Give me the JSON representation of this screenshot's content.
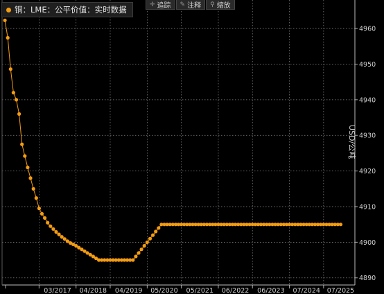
{
  "legend": {
    "label": "铜：LME：公平价值：实时数据",
    "color": "#f39c12"
  },
  "toolbar": [
    {
      "icon": "crosshair-icon",
      "glyph": "✛",
      "label": "追踪"
    },
    {
      "icon": "pencil-icon",
      "glyph": "✎",
      "label": "注释"
    },
    {
      "icon": "zoom-icon",
      "glyph": "⚲",
      "label": "缩放"
    }
  ],
  "chart_data": {
    "type": "line",
    "title": "",
    "xlabel": "",
    "ylabel": "USD/公吨",
    "ylim": [
      4888,
      4968
    ],
    "yticks": [
      4890,
      4900,
      4910,
      4920,
      4930,
      4940,
      4950,
      4960
    ],
    "xlim": [
      "2016-02",
      "2026-06"
    ],
    "xticks": [
      "03/2017",
      "04/2018",
      "04/2019",
      "05/2020",
      "05/2021",
      "06/2022",
      "06/2023",
      "07/2024",
      "07/2025"
    ],
    "grid": true,
    "legend_position": "top-left",
    "series": [
      {
        "name": "铜：LME：公平价值：实时数据",
        "color": "#f39c12",
        "marker": "circle",
        "points": [
          [
            "2016-03",
            4962.3
          ],
          [
            "2016-04",
            4957.4
          ],
          [
            "2016-05",
            4948.6
          ],
          [
            "2016-06",
            4942.0
          ],
          [
            "2016-07",
            4940.0
          ],
          [
            "2016-08",
            4936.0
          ],
          [
            "2016-09",
            4927.5
          ],
          [
            "2016-10",
            4924.2
          ],
          [
            "2016-11",
            4921.0
          ],
          [
            "2016-12",
            4918.0
          ],
          [
            "2017-01",
            4915.0
          ],
          [
            "2017-02",
            4912.4
          ],
          [
            "2017-03",
            4909.5
          ],
          [
            "2017-04",
            4908.0
          ],
          [
            "2017-05",
            4906.8
          ],
          [
            "2017-06",
            4905.5
          ],
          [
            "2017-07",
            4904.5
          ],
          [
            "2017-08",
            4903.7
          ],
          [
            "2017-09",
            4902.9
          ],
          [
            "2017-10",
            4902.2
          ],
          [
            "2017-11",
            4901.5
          ],
          [
            "2017-12",
            4900.9
          ],
          [
            "2018-01",
            4900.3
          ],
          [
            "2018-02",
            4899.8
          ],
          [
            "2018-03",
            4899.4
          ],
          [
            "2018-04",
            4899.0
          ],
          [
            "2018-05",
            4898.5
          ],
          [
            "2018-06",
            4898.0
          ],
          [
            "2018-07",
            4897.5
          ],
          [
            "2018-08",
            4897.0
          ],
          [
            "2018-09",
            4896.5
          ],
          [
            "2018-10",
            4896.0
          ],
          [
            "2018-11",
            4895.5
          ],
          [
            "2018-12",
            4895.0
          ],
          [
            "2019-01",
            4895.0
          ],
          [
            "2019-02",
            4895.0
          ],
          [
            "2019-03",
            4895.0
          ],
          [
            "2019-04",
            4895.0
          ],
          [
            "2019-05",
            4895.0
          ],
          [
            "2019-06",
            4895.0
          ],
          [
            "2019-07",
            4895.0
          ],
          [
            "2019-08",
            4895.0
          ],
          [
            "2019-09",
            4895.0
          ],
          [
            "2019-10",
            4895.0
          ],
          [
            "2019-11",
            4895.0
          ],
          [
            "2019-12",
            4895.0
          ],
          [
            "2020-01",
            4896.0
          ],
          [
            "2020-02",
            4897.0
          ],
          [
            "2020-03",
            4898.0
          ],
          [
            "2020-04",
            4899.0
          ],
          [
            "2020-05",
            4900.0
          ],
          [
            "2020-06",
            4901.0
          ],
          [
            "2020-07",
            4902.0
          ],
          [
            "2020-08",
            4903.0
          ],
          [
            "2020-09",
            4904.0
          ],
          [
            "2020-10",
            4905.0
          ],
          [
            "2020-11",
            4905.0
          ],
          [
            "2020-12",
            4905.0
          ],
          [
            "2021-01",
            4905.0
          ],
          [
            "2021-02",
            4905.0
          ],
          [
            "2021-03",
            4905.0
          ],
          [
            "2021-04",
            4905.0
          ],
          [
            "2021-05",
            4905.0
          ],
          [
            "2021-06",
            4905.0
          ],
          [
            "2021-07",
            4905.0
          ],
          [
            "2021-08",
            4905.0
          ],
          [
            "2021-09",
            4905.0
          ],
          [
            "2021-10",
            4905.0
          ],
          [
            "2021-11",
            4905.0
          ],
          [
            "2021-12",
            4905.0
          ],
          [
            "2022-01",
            4905.0
          ],
          [
            "2022-02",
            4905.0
          ],
          [
            "2022-03",
            4905.0
          ],
          [
            "2022-04",
            4905.0
          ],
          [
            "2022-05",
            4905.0
          ],
          [
            "2022-06",
            4905.0
          ],
          [
            "2022-07",
            4905.0
          ],
          [
            "2022-08",
            4905.0
          ],
          [
            "2022-09",
            4905.0
          ],
          [
            "2022-10",
            4905.0
          ],
          [
            "2022-11",
            4905.0
          ],
          [
            "2022-12",
            4905.0
          ],
          [
            "2023-01",
            4905.0
          ],
          [
            "2023-02",
            4905.0
          ],
          [
            "2023-03",
            4905.0
          ],
          [
            "2023-04",
            4905.0
          ],
          [
            "2023-05",
            4905.0
          ],
          [
            "2023-06",
            4905.0
          ],
          [
            "2023-07",
            4905.0
          ],
          [
            "2023-08",
            4905.0
          ],
          [
            "2023-09",
            4905.0
          ],
          [
            "2023-10",
            4905.0
          ],
          [
            "2023-11",
            4905.0
          ],
          [
            "2023-12",
            4905.0
          ],
          [
            "2024-01",
            4905.0
          ],
          [
            "2024-02",
            4905.0
          ],
          [
            "2024-03",
            4905.0
          ],
          [
            "2024-04",
            4905.0
          ],
          [
            "2024-05",
            4905.0
          ],
          [
            "2024-06",
            4905.0
          ],
          [
            "2024-07",
            4905.0
          ],
          [
            "2024-08",
            4905.0
          ],
          [
            "2024-09",
            4905.0
          ],
          [
            "2024-10",
            4905.0
          ],
          [
            "2024-11",
            4905.0
          ],
          [
            "2024-12",
            4905.0
          ],
          [
            "2025-01",
            4905.0
          ],
          [
            "2025-02",
            4905.0
          ],
          [
            "2025-03",
            4905.0
          ],
          [
            "2025-04",
            4905.0
          ],
          [
            "2025-05",
            4905.0
          ],
          [
            "2025-06",
            4905.0
          ],
          [
            "2025-07",
            4905.0
          ],
          [
            "2025-08",
            4905.0
          ],
          [
            "2025-09",
            4905.0
          ],
          [
            "2025-10",
            4905.0
          ],
          [
            "2025-11",
            4905.0
          ],
          [
            "2025-12",
            4905.0
          ],
          [
            "2026-01",
            4905.0
          ]
        ]
      }
    ]
  }
}
